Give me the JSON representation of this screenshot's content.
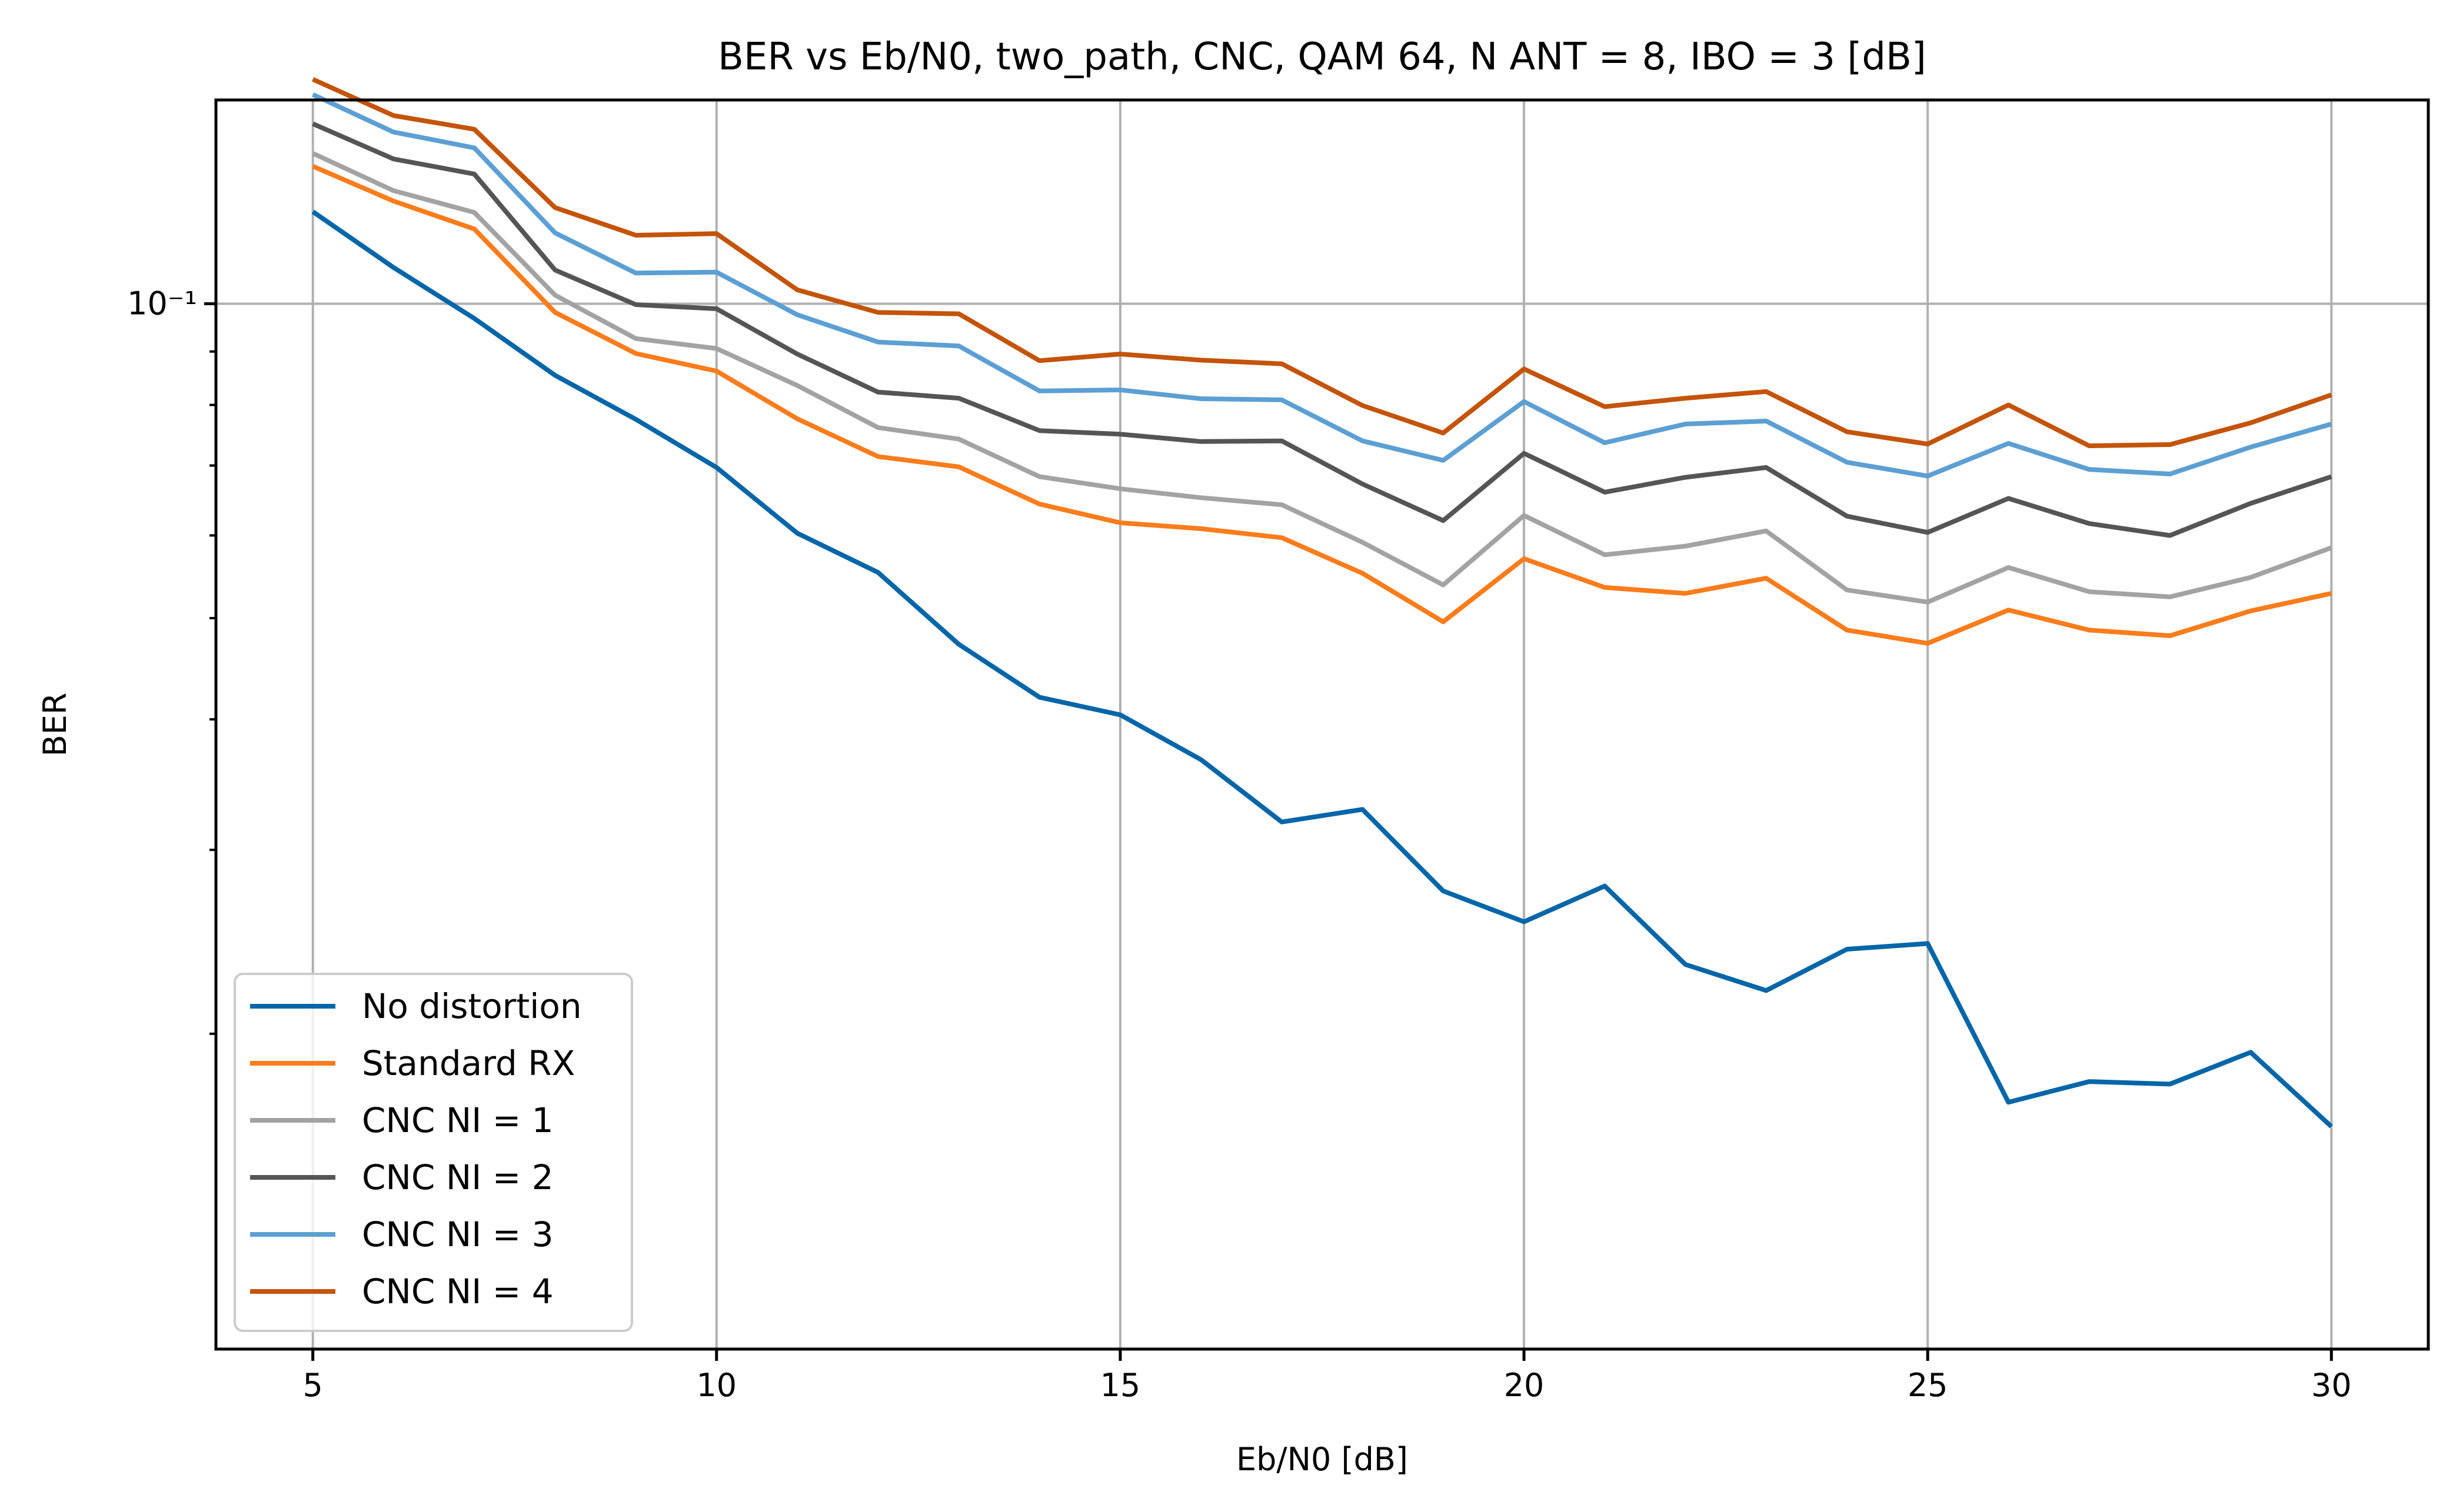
{
  "chart_data": {
    "type": "line",
    "title": "BER vs Eb/N0, two_path, CNC, QAM 64, N ANT = 8, IBO = 3 [dB]",
    "xlabel": "Eb/N0 [dB]",
    "ylabel": "BER",
    "y_scale": "log",
    "xlim": [
      3.8,
      31.2
    ],
    "ylim": [
      0.00998,
      0.1567
    ],
    "xticks": [
      5,
      10,
      15,
      20,
      25,
      30
    ],
    "yticks_major": [
      {
        "value": 0.1,
        "label": "10⁻¹"
      }
    ],
    "yticks_minor": [
      0.02,
      0.03,
      0.04,
      0.05,
      0.06,
      0.07,
      0.08,
      0.09
    ],
    "grid": true,
    "legend_position": "lower-left",
    "x": [
      5,
      6,
      7,
      8,
      9,
      10,
      11,
      12,
      13,
      14,
      15,
      16,
      17,
      18,
      19,
      20,
      21,
      22,
      23,
      24,
      25,
      26,
      27,
      28,
      29,
      30
    ],
    "series": [
      {
        "name": "No distortion",
        "color": "#0266a8",
        "values": [
          0.1225,
          0.1083,
          0.0968,
          0.0854,
          0.0775,
          0.0697,
          0.0603,
          0.0553,
          0.0472,
          0.042,
          0.0404,
          0.0366,
          0.0319,
          0.0328,
          0.0274,
          0.0256,
          0.0277,
          0.0233,
          0.022,
          0.0241,
          0.0244,
          0.0172,
          0.018,
          0.0179,
          0.0192,
          0.0163
        ]
      },
      {
        "name": "Standard RX",
        "color": "#fa7c1b",
        "values": [
          0.1354,
          0.1254,
          0.1179,
          0.0981,
          0.0896,
          0.0862,
          0.0776,
          0.0714,
          0.0698,
          0.0643,
          0.0617,
          0.0609,
          0.0597,
          0.0552,
          0.0496,
          0.057,
          0.0535,
          0.0528,
          0.0546,
          0.0487,
          0.0473,
          0.0509,
          0.0487,
          0.0481,
          0.0508,
          0.0528
        ]
      },
      {
        "name": "CNC NI = 1",
        "color": "#a3a3a3",
        "values": [
          0.1393,
          0.1283,
          0.1223,
          0.1019,
          0.0926,
          0.0906,
          0.0835,
          0.0761,
          0.0742,
          0.0683,
          0.0665,
          0.0652,
          0.0642,
          0.0591,
          0.0538,
          0.0627,
          0.0575,
          0.0586,
          0.0606,
          0.0532,
          0.0518,
          0.0559,
          0.053,
          0.0524,
          0.0547,
          0.0584
        ]
      },
      {
        "name": "CNC NI = 2",
        "color": "#555555",
        "values": [
          0.1487,
          0.1376,
          0.1331,
          0.1077,
          0.0998,
          0.0989,
          0.0895,
          0.0823,
          0.0812,
          0.0756,
          0.075,
          0.0738,
          0.0739,
          0.0672,
          0.062,
          0.0719,
          0.066,
          0.0682,
          0.0697,
          0.0626,
          0.0604,
          0.0651,
          0.0616,
          0.06,
          0.0644,
          0.0683
        ]
      },
      {
        "name": "CNC NI = 3",
        "color": "#5c9fd3",
        "values": [
          0.1586,
          0.146,
          0.141,
          0.1169,
          0.107,
          0.1072,
          0.0976,
          0.0919,
          0.0911,
          0.0825,
          0.0827,
          0.0811,
          0.0809,
          0.0739,
          0.0708,
          0.0806,
          0.0736,
          0.0767,
          0.0772,
          0.0705,
          0.0684,
          0.0735,
          0.0694,
          0.0687,
          0.0729,
          0.0767
        ]
      },
      {
        "name": "CNC NI = 4",
        "color": "#c35409",
        "values": [
          0.164,
          0.1514,
          0.1469,
          0.1236,
          0.1163,
          0.1167,
          0.1031,
          0.0981,
          0.0978,
          0.0882,
          0.0895,
          0.0883,
          0.0876,
          0.0799,
          0.0752,
          0.0866,
          0.0797,
          0.0812,
          0.0824,
          0.0754,
          0.0734,
          0.08,
          0.0731,
          0.0733,
          0.0769,
          0.0818
        ]
      }
    ]
  }
}
